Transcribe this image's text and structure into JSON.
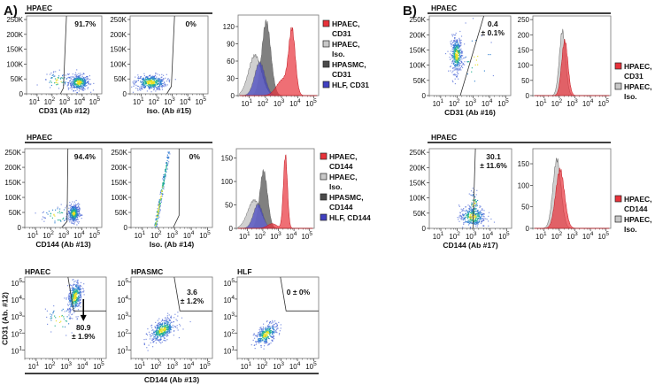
{
  "figure": {
    "panel_labels": [
      "A)",
      "B)"
    ],
    "group_headers": [
      "HPAEC",
      "HPAEC",
      "HPAEC",
      "HPAEC"
    ],
    "row3_shared_xlabel": "CD144 (Ab #13)",
    "row3_shared_ylabel": "CD31 (Ab. #12)",
    "colors": {
      "dense": "#e8e020",
      "mid": "#20b090",
      "sparse": "#3050d0",
      "red": "#e8323a",
      "light_gray": "#c8c8c8",
      "dark_gray": "#4a4a4a",
      "blue": "#4040c0"
    }
  },
  "chart_data": [
    {
      "type": "scatter",
      "panel": "A",
      "title": "",
      "xlabel": "CD31 (Ab #12)",
      "xscale": "log",
      "x_tick_base": "10",
      "x_tick_exponents": [
        "1",
        "2",
        "3",
        "4",
        "5"
      ],
      "xlim_log": [
        0.3,
        5.3
      ],
      "yscale": "linear",
      "y_ticks": [
        0,
        50,
        100,
        150,
        200,
        250
      ],
      "y_tick_labels": [
        "0",
        "50K",
        "100K",
        "150K",
        "200K",
        "250K"
      ],
      "ylim": [
        0,
        262
      ],
      "clusters": [
        {
          "x_log": 3.75,
          "y": 40,
          "sd_x": 0.35,
          "sd_y": 13,
          "n": 380
        },
        {
          "x_log": 2.3,
          "y": 45,
          "sd_x": 0.5,
          "sd_y": 15,
          "n": 60
        }
      ],
      "gate": [
        [
          2.55,
          0
        ],
        [
          2.75,
          20
        ],
        [
          2.95,
          262
        ]
      ],
      "annotation": [
        "91.7%"
      ]
    },
    {
      "type": "scatter",
      "panel": "A",
      "title": "",
      "xlabel": "Iso. (Ab #15)",
      "xscale": "log",
      "x_tick_base": "10",
      "x_tick_exponents": [
        "1",
        "2",
        "3",
        "4",
        "5"
      ],
      "xlim_log": [
        0.3,
        5.3
      ],
      "yscale": "linear",
      "y_ticks": [
        0,
        50,
        100,
        150,
        200,
        250
      ],
      "y_tick_labels": [
        "0",
        "50K",
        "100K",
        "150K",
        "200K",
        "250K"
      ],
      "ylim": [
        0,
        262
      ],
      "clusters": [
        {
          "x_log": 1.6,
          "y": 40,
          "sd_x": 0.5,
          "sd_y": 13,
          "n": 420
        }
      ],
      "gate": [
        [
          2.65,
          0
        ],
        [
          2.95,
          25
        ],
        [
          3.15,
          262
        ]
      ],
      "annotation": [
        "0%"
      ]
    },
    {
      "type": "histogram",
      "panel": "A",
      "xscale": "log",
      "x_tick_base": "10",
      "x_tick_exponents": [
        "1",
        "2",
        "3",
        "4",
        "5"
      ],
      "xlim_log": [
        0.3,
        5.3
      ],
      "y_ticks": [
        0,
        30,
        60,
        90,
        120
      ],
      "ylim": [
        0,
        140
      ],
      "series": [
        {
          "name": "HPASMC, CD31",
          "legend_lines": [
            "HPASMC,",
            "CD31"
          ],
          "color": "#4a4a4a",
          "peaks": [
            {
              "x_log": 2.05,
              "sd": 0.28,
              "height": 128
            }
          ]
        },
        {
          "name": "HPAEC, Iso.",
          "legend_lines": [
            "HPAEC,",
            "Iso."
          ],
          "color": "#c8c8c8",
          "peaks": [
            {
              "x_log": 1.35,
              "sd": 0.4,
              "height": 70
            }
          ]
        },
        {
          "name": "HLF, CD31",
          "legend_lines": [
            "HLF, CD31"
          ],
          "color": "#4040c0",
          "peaks": [
            {
              "x_log": 1.65,
              "sd": 0.32,
              "height": 58
            }
          ]
        },
        {
          "name": "HPAEC, CD31",
          "legend_lines": [
            "HPAEC,",
            "CD31"
          ],
          "color": "#e8323a",
          "peaks": [
            {
              "x_log": 3.65,
              "sd": 0.2,
              "height": 106
            },
            {
              "x_log": 3.1,
              "sd": 0.4,
              "height": 28
            }
          ]
        }
      ],
      "legend_order": [
        3,
        1,
        0,
        2
      ]
    },
    {
      "type": "scatter",
      "panel": "B",
      "title": "",
      "xlabel": "CD31 (Ab #16)",
      "xscale": "log",
      "x_tick_base": "10",
      "x_tick_exponents": [
        "1",
        "2",
        "3",
        "4",
        "5"
      ],
      "xlim_log": [
        0.3,
        5.3
      ],
      "yscale": "linear",
      "y_ticks": [
        0,
        50,
        100,
        150,
        200,
        250
      ],
      "y_tick_labels": [
        "0",
        "50K",
        "100K",
        "150K",
        "200K",
        "250K"
      ],
      "ylim": [
        0,
        262
      ],
      "clusters": [
        {
          "x_log": 1.95,
          "y": 135,
          "sd_x": 0.18,
          "sd_y": 30,
          "n": 380,
          "slope": 0.004
        },
        {
          "x_log": 3.2,
          "y": 120,
          "sd_x": 0.6,
          "sd_y": 50,
          "n": 25
        }
      ],
      "gate": [
        [
          2.2,
          0
        ],
        [
          3.65,
          262
        ]
      ],
      "annotation": [
        "0.4",
        "± 0.1%"
      ]
    },
    {
      "type": "histogram",
      "panel": "B",
      "xscale": "log",
      "x_tick_base": "10",
      "x_tick_exponents": [
        "1",
        "2",
        "3",
        "4",
        "5"
      ],
      "xlim_log": [
        0.3,
        5.3
      ],
      "y_ticks": [
        0,
        50,
        100,
        150,
        200,
        250
      ],
      "ylim": [
        0,
        262
      ],
      "series": [
        {
          "name": "HPAEC, Iso.",
          "legend_lines": [
            "HPAEC,",
            "Iso."
          ],
          "color": "#c8c8c8",
          "peaks": [
            {
              "x_log": 2.2,
              "sd": 0.2,
              "height": 212
            }
          ]
        },
        {
          "name": "HPAEC, CD31",
          "legend_lines": [
            "HPAEC,",
            "CD31"
          ],
          "color": "#e8323a",
          "peaks": [
            {
              "x_log": 2.35,
              "sd": 0.2,
              "height": 180
            }
          ]
        }
      ],
      "legend_order": [
        1,
        0
      ]
    },
    {
      "type": "scatter",
      "panel": "A",
      "title": "",
      "xlabel": "CD144 (Ab #13)",
      "xscale": "log",
      "x_tick_base": "10",
      "x_tick_exponents": [
        "1",
        "2",
        "3",
        "4",
        "5"
      ],
      "xlim_log": [
        0.3,
        5.3
      ],
      "yscale": "linear",
      "y_ticks": [
        0,
        50,
        100,
        150,
        200,
        250
      ],
      "y_tick_labels": [
        "0",
        "50K",
        "100K",
        "150K",
        "200K",
        "250K"
      ],
      "ylim": [
        0,
        262
      ],
      "clusters": [
        {
          "x_log": 3.45,
          "y": 48,
          "sd_x": 0.18,
          "sd_y": 15,
          "n": 380
        },
        {
          "x_log": 2.4,
          "y": 40,
          "sd_x": 0.55,
          "sd_y": 18,
          "n": 50
        }
      ],
      "gate": [
        [
          2.7,
          0
        ],
        [
          3.05,
          20
        ],
        [
          3.1,
          262
        ]
      ],
      "annotation": [
        "94.4%"
      ]
    },
    {
      "type": "scatter",
      "panel": "A",
      "title": "",
      "xlabel": "Iso. (Ab #14)",
      "xscale": "log",
      "x_tick_base": "10",
      "x_tick_exponents": [
        "1",
        "2",
        "3",
        "4",
        "5"
      ],
      "xlim_log": [
        0.3,
        5.3
      ],
      "yscale": "linear",
      "y_ticks": [
        0,
        50,
        100,
        150,
        200,
        250
      ],
      "y_tick_labels": [
        "0",
        "50K",
        "100K",
        "150K",
        "200K",
        "250K"
      ],
      "ylim": [
        0,
        262
      ],
      "clusters": [
        {
          "x_log": 1.9,
          "y": 42,
          "sd_x": 0.6,
          "sd_y": 14,
          "n": 440,
          "slope": 10
        }
      ],
      "gate": [
        [
          2.9,
          0
        ],
        [
          3.25,
          40
        ],
        [
          3.25,
          262
        ]
      ],
      "annotation": [
        "0%"
      ]
    },
    {
      "type": "histogram",
      "panel": "A",
      "xscale": "log",
      "x_tick_base": "10",
      "x_tick_exponents": [
        "1",
        "2",
        "3",
        "4",
        "5"
      ],
      "xlim_log": [
        0.3,
        5.3
      ],
      "y_ticks": [
        0,
        50,
        100,
        150
      ],
      "ylim": [
        0,
        170
      ],
      "series": [
        {
          "name": "HPASMC, CD144",
          "legend_lines": [
            "HPASMC,",
            "CD144"
          ],
          "color": "#4a4a4a",
          "peaks": [
            {
              "x_log": 2.05,
              "sd": 0.25,
              "height": 122
            }
          ]
        },
        {
          "name": "HPAEC, Iso.",
          "legend_lines": [
            "HPAEC,",
            "Iso."
          ],
          "color": "#c8c8c8",
          "peaks": [
            {
              "x_log": 1.45,
              "sd": 0.42,
              "height": 60
            }
          ]
        },
        {
          "name": "HLF, CD144",
          "legend_lines": [
            "HLF, CD144"
          ],
          "color": "#4040c0",
          "peaks": [
            {
              "x_log": 1.7,
              "sd": 0.3,
              "height": 52
            }
          ]
        },
        {
          "name": "HPAEC, CD144",
          "legend_lines": [
            "HPAEC,",
            "CD144"
          ],
          "color": "#e8323a",
          "peaks": [
            {
              "x_log": 3.45,
              "sd": 0.13,
              "height": 155
            },
            {
              "x_log": 2.6,
              "sd": 0.3,
              "height": 10
            }
          ]
        }
      ],
      "legend_order": [
        3,
        1,
        0,
        2
      ]
    },
    {
      "type": "scatter",
      "panel": "B",
      "title": "",
      "xlabel": "CD144 (Ab #17)",
      "xscale": "log",
      "x_tick_base": "10",
      "x_tick_exponents": [
        "1",
        "2",
        "3",
        "4",
        "5"
      ],
      "xlim_log": [
        0.3,
        5.3
      ],
      "yscale": "linear",
      "y_ticks": [
        0,
        50,
        100,
        150,
        200,
        250
      ],
      "y_tick_labels": [
        "0",
        "50K",
        "100K",
        "150K",
        "200K",
        "250K"
      ],
      "ylim": [
        0,
        262
      ],
      "clusters": [
        {
          "x_log": 2.9,
          "y": 40,
          "sd_x": 0.4,
          "sd_y": 18,
          "n": 330
        },
        {
          "x_log": 3.0,
          "y": 80,
          "sd_x": 0.15,
          "sd_y": 25,
          "n": 60
        }
      ],
      "gate": [
        [
          2.95,
          0
        ],
        [
          3.1,
          262
        ]
      ],
      "annotation": [
        "30.1",
        "± 11.6%"
      ]
    },
    {
      "type": "histogram",
      "panel": "B",
      "xscale": "log",
      "x_tick_base": "10",
      "x_tick_exponents": [
        "1",
        "2",
        "3",
        "4",
        "5"
      ],
      "xlim_log": [
        0.3,
        5.3
      ],
      "y_ticks": [
        0,
        50,
        100,
        150
      ],
      "ylim": [
        0,
        185
      ],
      "series": [
        {
          "name": "HPAEC, Iso.",
          "legend_lines": [
            "HPAEC,",
            "Iso."
          ],
          "color": "#c8c8c8",
          "peaks": [
            {
              "x_log": 1.85,
              "sd": 0.26,
              "height": 160
            }
          ]
        },
        {
          "name": "HPAEC, CD144",
          "legend_lines": [
            "HPAEC,",
            "CD144"
          ],
          "color": "#e8323a",
          "peaks": [
            {
              "x_log": 2.05,
              "sd": 0.28,
              "height": 136
            }
          ]
        }
      ],
      "legend_order": [
        1,
        0
      ]
    },
    {
      "type": "scatter",
      "panel": "A",
      "title": "HPAEC",
      "xlabel": "",
      "xscale": "log",
      "x_tick_base": "10",
      "x_tick_exponents": [
        "1",
        "2",
        "3",
        "4",
        "5"
      ],
      "xlim_log": [
        0.3,
        5.3
      ],
      "yscale": "log",
      "y_tick_base": "10",
      "y_tick_exponents": [
        "1",
        "2",
        "3",
        "4",
        "5"
      ],
      "ylim_log": [
        0.5,
        5.3
      ],
      "clusters": [
        {
          "x_log": 3.35,
          "y_log": 4.15,
          "sd_x": 0.22,
          "sd_y": 0.45,
          "n": 380,
          "slope": 1.2
        },
        {
          "x_log": 2.4,
          "y_log": 2.8,
          "sd_x": 0.5,
          "sd_y": 0.5,
          "n": 40
        }
      ],
      "gate": [
        [
          2.95,
          5.3
        ],
        [
          3.3,
          3.3
        ],
        [
          5.3,
          3.3
        ]
      ],
      "arrow": {
        "x_log": 3.9,
        "from_y_log": 4.0,
        "to_y_log": 2.8
      },
      "annotation": [
        "80.9",
        "± 1.9%"
      ]
    },
    {
      "type": "scatter",
      "panel": "A",
      "title": "HPASMC",
      "xlabel": "",
      "xscale": "log",
      "x_tick_base": "10",
      "x_tick_exponents": [
        "1",
        "2",
        "3",
        "4",
        "5"
      ],
      "xlim_log": [
        0.3,
        5.3
      ],
      "yscale": "log",
      "y_tick_base": "10",
      "y_tick_exponents": [
        "1",
        "2",
        "3",
        "4",
        "5"
      ],
      "ylim_log": [
        0.5,
        5.3
      ],
      "clusters": [
        {
          "x_log": 2.2,
          "y_log": 2.2,
          "sd_x": 0.4,
          "sd_y": 0.3,
          "n": 420,
          "slope": 0.75
        }
      ],
      "gate": [
        [
          2.95,
          5.3
        ],
        [
          3.3,
          3.3
        ],
        [
          5.3,
          3.3
        ]
      ],
      "annotation": [
        "3.6",
        "± 1.2%"
      ]
    },
    {
      "type": "scatter",
      "panel": "A",
      "title": "HLF",
      "xlabel": "",
      "xscale": "log",
      "x_tick_base": "10",
      "x_tick_exponents": [
        "1",
        "2",
        "3",
        "4",
        "5"
      ],
      "xlim_log": [
        0.3,
        5.3
      ],
      "yscale": "log",
      "y_tick_base": "10",
      "y_tick_exponents": [
        "1",
        "2",
        "3",
        "4",
        "5"
      ],
      "ylim_log": [
        0.5,
        5.3
      ],
      "clusters": [
        {
          "x_log": 2.05,
          "y_log": 1.95,
          "sd_x": 0.35,
          "sd_y": 0.28,
          "n": 320,
          "slope": 0.8
        }
      ],
      "gate": [
        [
          2.95,
          5.3
        ],
        [
          3.3,
          3.3
        ],
        [
          5.3,
          3.3
        ]
      ],
      "annotation": [
        "0 ± 0%"
      ]
    }
  ]
}
